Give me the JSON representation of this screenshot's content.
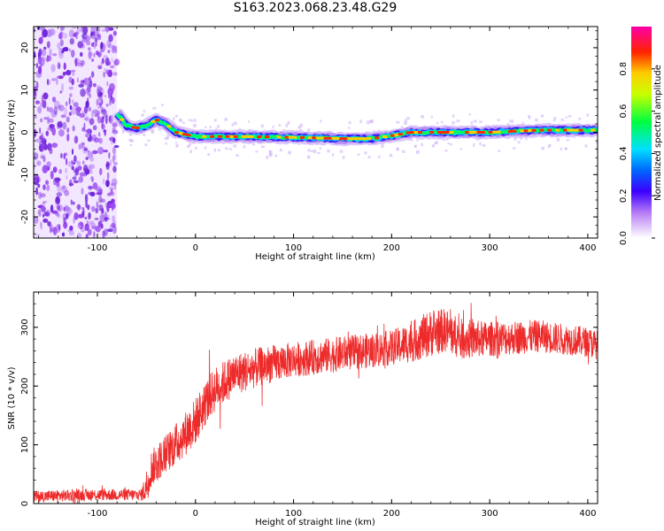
{
  "page": {
    "title": "S163.2023.068.23.48.G29"
  },
  "colors": {
    "snr_line": "#ee2b2b",
    "plot_frame": "#000000",
    "noise_blobs": "#9a3ff0"
  },
  "chart_data": [
    {
      "type": "heatmap",
      "xlabel": "Height of straight line (km)",
      "ylabel": "Frequency (Hz)",
      "xlim": [
        -165,
        410
      ],
      "ylim": [
        -25,
        25
      ],
      "x_ticks": [
        -100,
        0,
        100,
        200,
        300,
        400
      ],
      "y_ticks": [
        -20,
        -10,
        0,
        10,
        20
      ],
      "colorbar": {
        "label": "Normalized spectral amplitude",
        "range": [
          0.0,
          1.0
        ],
        "ticks": [
          "0.0",
          "0.2",
          "0.4",
          "0.6",
          "0.8"
        ],
        "colormap": "white-purple-blue-cyan-green-yellow-red-magenta"
      },
      "noise_region_x": [
        -165,
        -80
      ],
      "ridge": [
        {
          "x": -80,
          "y": 4.5
        },
        {
          "x": -75,
          "y": 3.0
        },
        {
          "x": -70,
          "y": 1.5
        },
        {
          "x": -60,
          "y": 1.0
        },
        {
          "x": -50,
          "y": 1.5
        },
        {
          "x": -40,
          "y": 3.0
        },
        {
          "x": -30,
          "y": 2.0
        },
        {
          "x": -20,
          "y": 0.0
        },
        {
          "x": 0,
          "y": -1.0
        },
        {
          "x": 50,
          "y": -1.0
        },
        {
          "x": 100,
          "y": -1.2
        },
        {
          "x": 150,
          "y": -1.5
        },
        {
          "x": 180,
          "y": -1.5
        },
        {
          "x": 200,
          "y": -0.8
        },
        {
          "x": 220,
          "y": 0.0
        },
        {
          "x": 250,
          "y": 0.0
        },
        {
          "x": 300,
          "y": 0.0
        },
        {
          "x": 350,
          "y": 0.5
        },
        {
          "x": 400,
          "y": 0.5
        },
        {
          "x": 410,
          "y": 0.5
        }
      ]
    },
    {
      "type": "line",
      "xlabel": "Height of straight line (km)",
      "ylabel": "SNR (10 * v/v)",
      "xlim": [
        -165,
        410
      ],
      "ylim": [
        0,
        360
      ],
      "x_ticks": [
        -100,
        0,
        100,
        200,
        300,
        400
      ],
      "y_ticks": [
        0,
        100,
        200,
        300
      ],
      "series": [
        {
          "trend": [
            {
              "x": -165,
              "y": 12
            },
            {
              "x": -100,
              "y": 15
            },
            {
              "x": -55,
              "y": 15
            },
            {
              "x": -50,
              "y": 30
            },
            {
              "x": -45,
              "y": 60
            },
            {
              "x": -30,
              "y": 85
            },
            {
              "x": -15,
              "y": 110
            },
            {
              "x": 0,
              "y": 140
            },
            {
              "x": 10,
              "y": 170
            },
            {
              "x": 20,
              "y": 195
            },
            {
              "x": 40,
              "y": 220
            },
            {
              "x": 70,
              "y": 235
            },
            {
              "x": 100,
              "y": 245
            },
            {
              "x": 150,
              "y": 255
            },
            {
              "x": 200,
              "y": 265
            },
            {
              "x": 220,
              "y": 275
            },
            {
              "x": 240,
              "y": 290
            },
            {
              "x": 255,
              "y": 295
            },
            {
              "x": 270,
              "y": 280
            },
            {
              "x": 300,
              "y": 280
            },
            {
              "x": 350,
              "y": 285
            },
            {
              "x": 400,
              "y": 275
            },
            {
              "x": 410,
              "y": 270
            }
          ],
          "noise_amplitude": [
            {
              "x": -165,
              "y": 10
            },
            {
              "x": -55,
              "y": 10
            },
            {
              "x": -50,
              "y": 30
            },
            {
              "x": 0,
              "y": 40
            },
            {
              "x": 100,
              "y": 30
            },
            {
              "x": 200,
              "y": 30
            },
            {
              "x": 240,
              "y": 40
            },
            {
              "x": 300,
              "y": 30
            },
            {
              "x": 410,
              "y": 25
            }
          ]
        }
      ]
    }
  ]
}
